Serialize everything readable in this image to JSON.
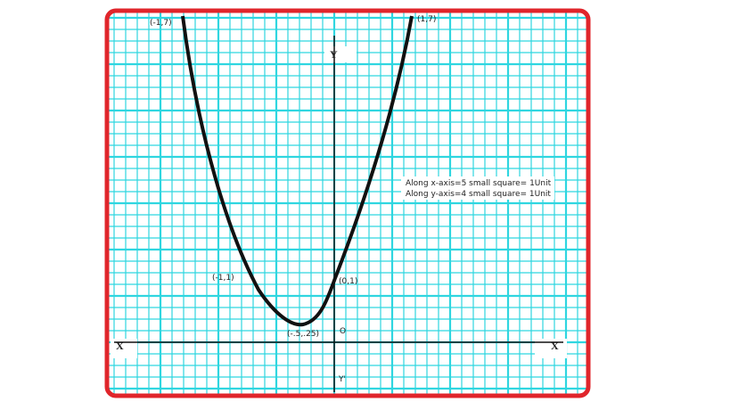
{
  "axes": {
    "x_left": "X",
    "x_right": "X",
    "y_top": "Y",
    "y_bottom": "Y'",
    "origin": "O"
  },
  "points": [
    {
      "label": "(-1,7)"
    },
    {
      "label": "(1,7)"
    },
    {
      "label": "(-1,1)"
    },
    {
      "label": "(0,1)"
    },
    {
      "label": "(-.5,.25)"
    }
  ],
  "notes": [
    "Along x-axis=5 small square= 1Unit",
    "Along y-axis=4 small square= 1Unit"
  ]
}
